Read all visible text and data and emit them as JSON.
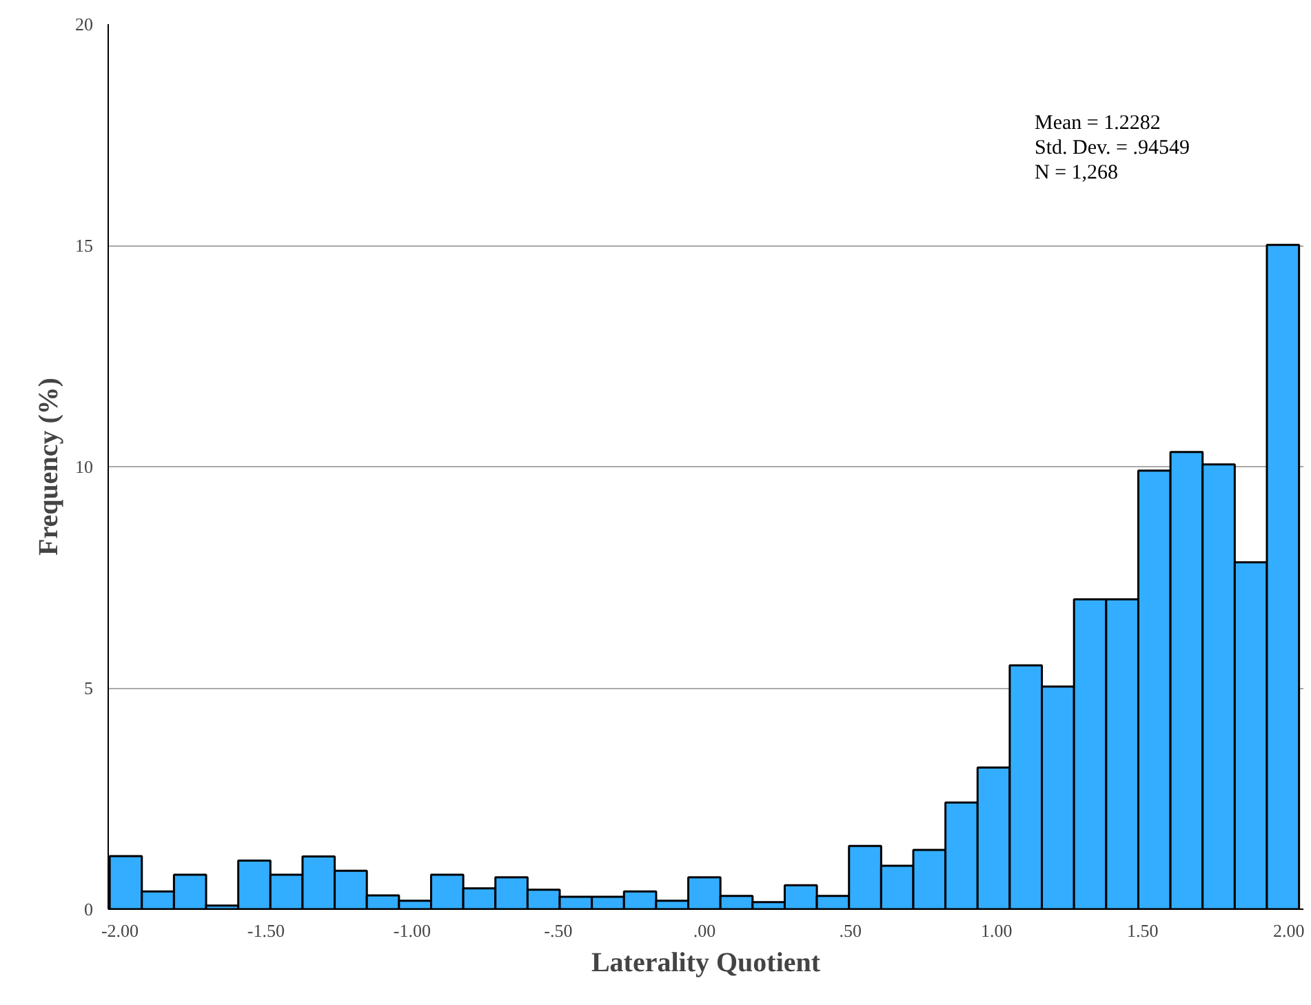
{
  "chart_data": {
    "type": "histogram",
    "xlabel": "Laterality Quotient",
    "ylabel": "Frequency (%)",
    "bins": [
      -2.035,
      -1.925,
      -1.815,
      -1.705,
      -1.595,
      -1.485,
      -1.375,
      -1.265,
      -1.155,
      -1.045,
      -0.935,
      -0.825,
      -0.715,
      -0.605,
      -0.495,
      -0.385,
      -0.275,
      -0.165,
      -0.055,
      0.055,
      0.165,
      0.275,
      0.385,
      0.495,
      0.605,
      0.715,
      0.825,
      0.935,
      1.045,
      1.155,
      1.265,
      1.375,
      1.485,
      1.595,
      1.705,
      1.815,
      1.925,
      2.035
    ],
    "values": [
      1.2,
      0.4,
      0.78,
      0.08,
      1.1,
      0.78,
      1.19,
      0.87,
      0.31,
      0.19,
      0.78,
      0.47,
      0.72,
      0.44,
      0.28,
      0.28,
      0.4,
      0.19,
      0.72,
      0.3,
      0.16,
      0.54,
      0.3,
      1.43,
      0.98,
      1.34,
      2.41,
      3.2,
      5.51,
      5.03,
      7.0,
      7.0,
      9.91,
      10.33,
      10.05,
      7.84,
      15.01
    ],
    "color": "#33adff",
    "xlim": [
      -2.04,
      2.05
    ],
    "ylim": [
      0,
      20
    ],
    "xticks": [
      {
        "value": -2,
        "label": "-2.00"
      },
      {
        "value": -1.5,
        "label": "-1.50"
      },
      {
        "value": -1,
        "label": "-1.00"
      },
      {
        "value": -0.5,
        "label": "-.50"
      },
      {
        "value": 0,
        "label": ".00"
      },
      {
        "value": 0.5,
        "label": ".50"
      },
      {
        "value": 1,
        "label": "1.00"
      },
      {
        "value": 1.5,
        "label": "1.50"
      },
      {
        "value": 2,
        "label": "2.00"
      }
    ],
    "yticks": [
      0,
      5,
      10,
      15,
      20
    ],
    "grid": "y",
    "annotations": [
      "Mean = 1.2282",
      "Std. Dev. = .94549",
      "N = 1,268"
    ]
  }
}
